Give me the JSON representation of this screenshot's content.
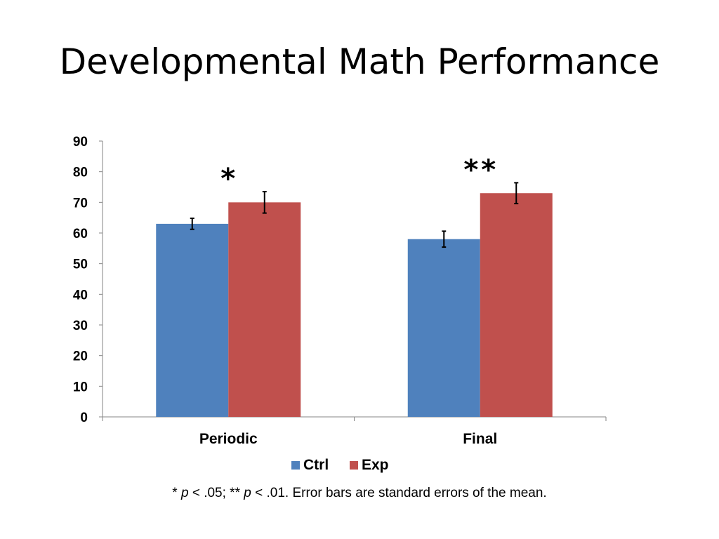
{
  "slide": {
    "title": "Developmental Math Performance"
  },
  "chart_data": {
    "type": "bar",
    "categories": [
      "Periodic",
      "Final"
    ],
    "series": [
      {
        "name": "Ctrl",
        "color": "#4F81BD",
        "values": [
          63,
          58
        ],
        "errors": [
          1.8,
          2.6
        ]
      },
      {
        "name": "Exp",
        "color": "#C0504D",
        "values": [
          70,
          73
        ],
        "errors": [
          3.5,
          3.4
        ]
      }
    ],
    "ylim": [
      0,
      90
    ],
    "yticks": [
      0,
      10,
      20,
      30,
      40,
      50,
      60,
      70,
      80,
      90
    ],
    "ytick_labels": [
      "0",
      "10",
      "20",
      "30",
      "40",
      "50",
      "60",
      "70",
      "80",
      "90"
    ],
    "significance": [
      "*",
      "**"
    ],
    "legend_position": "bottom",
    "grid": false,
    "title": "",
    "xlabel": "",
    "ylabel": ""
  },
  "footnote": {
    "p1_star": "* ",
    "p1_p": "p",
    "p1_rest": " < .05; ** ",
    "p2_p": "p",
    "p2_rest": " < .01. Error bars are standard errors of the mean."
  }
}
